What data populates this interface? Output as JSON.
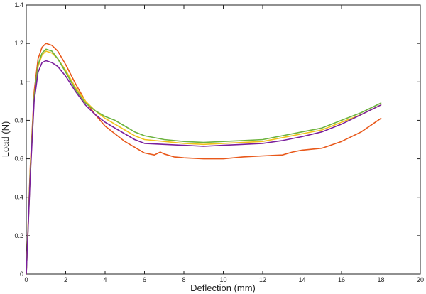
{
  "chart_data": {
    "type": "line",
    "title": "",
    "xlabel": "Deflection (mm)",
    "ylabel": "Load (N)",
    "xlim": [
      0,
      20
    ],
    "ylim": [
      0,
      1.4
    ],
    "grid": false,
    "x_ticks": [
      "0",
      "2",
      "4",
      "6",
      "8",
      "10",
      "12",
      "14",
      "16",
      "18",
      "20"
    ],
    "y_ticks": [
      "0",
      "0.2",
      "0.4",
      "0.6",
      "0.8",
      "1",
      "1.2",
      "1.4"
    ],
    "series": [
      {
        "color": "#e8581a",
        "x": [
          0,
          0.2,
          0.4,
          0.6,
          0.8,
          1.0,
          1.3,
          1.6,
          2.0,
          2.5,
          3.0,
          3.5,
          4.0,
          4.5,
          5.0,
          5.5,
          6.0,
          6.5,
          6.8,
          7.0,
          7.5,
          8.0,
          9.0,
          10.0,
          11.0,
          12.0,
          13.0,
          13.5,
          14.0,
          15.0,
          16.0,
          17.0,
          18.0
        ],
        "y": [
          0,
          0.55,
          0.95,
          1.12,
          1.18,
          1.2,
          1.19,
          1.16,
          1.09,
          0.99,
          0.9,
          0.83,
          0.77,
          0.73,
          0.69,
          0.66,
          0.63,
          0.62,
          0.635,
          0.625,
          0.61,
          0.605,
          0.6,
          0.6,
          0.61,
          0.615,
          0.62,
          0.635,
          0.645,
          0.655,
          0.69,
          0.74,
          0.81
        ]
      },
      {
        "color": "#f2c21a",
        "x": [
          0,
          0.2,
          0.4,
          0.6,
          0.8,
          1.0,
          1.3,
          1.6,
          2.0,
          2.5,
          3.0,
          3.5,
          4.0,
          4.5,
          5.0,
          5.5,
          6.0,
          7.0,
          8.0,
          9.0,
          10.0,
          11.0,
          12.0,
          13.0,
          14.0,
          15.0,
          16.0,
          17.0,
          18.0
        ],
        "y": [
          0,
          0.52,
          0.92,
          1.08,
          1.14,
          1.16,
          1.15,
          1.12,
          1.06,
          0.97,
          0.9,
          0.85,
          0.81,
          0.78,
          0.75,
          0.72,
          0.7,
          0.69,
          0.68,
          0.675,
          0.68,
          0.685,
          0.69,
          0.71,
          0.73,
          0.75,
          0.79,
          0.83,
          0.88
        ]
      },
      {
        "color": "#6cb33f",
        "x": [
          0,
          0.2,
          0.4,
          0.6,
          0.8,
          1.0,
          1.3,
          1.6,
          2.0,
          2.5,
          3.0,
          3.5,
          4.0,
          4.5,
          5.0,
          5.5,
          6.0,
          7.0,
          8.0,
          9.0,
          10.0,
          11.0,
          12.0,
          13.0,
          14.0,
          15.0,
          16.0,
          17.0,
          18.0
        ],
        "y": [
          0,
          0.52,
          0.92,
          1.09,
          1.15,
          1.17,
          1.16,
          1.12,
          1.05,
          0.96,
          0.89,
          0.85,
          0.82,
          0.8,
          0.77,
          0.74,
          0.72,
          0.7,
          0.69,
          0.685,
          0.69,
          0.695,
          0.7,
          0.72,
          0.74,
          0.76,
          0.8,
          0.84,
          0.89
        ]
      },
      {
        "color": "#7a1f9c",
        "x": [
          0,
          0.2,
          0.4,
          0.6,
          0.8,
          1.0,
          1.3,
          1.6,
          2.0,
          2.5,
          3.0,
          3.5,
          4.0,
          4.5,
          5.0,
          5.5,
          6.0,
          7.0,
          8.0,
          9.0,
          10.0,
          11.0,
          12.0,
          13.0,
          14.0,
          15.0,
          16.0,
          17.0,
          18.0
        ],
        "y": [
          0,
          0.5,
          0.9,
          1.05,
          1.1,
          1.11,
          1.1,
          1.08,
          1.03,
          0.95,
          0.88,
          0.83,
          0.79,
          0.76,
          0.73,
          0.7,
          0.68,
          0.675,
          0.67,
          0.665,
          0.67,
          0.675,
          0.68,
          0.695,
          0.715,
          0.74,
          0.78,
          0.83,
          0.88
        ]
      }
    ]
  }
}
